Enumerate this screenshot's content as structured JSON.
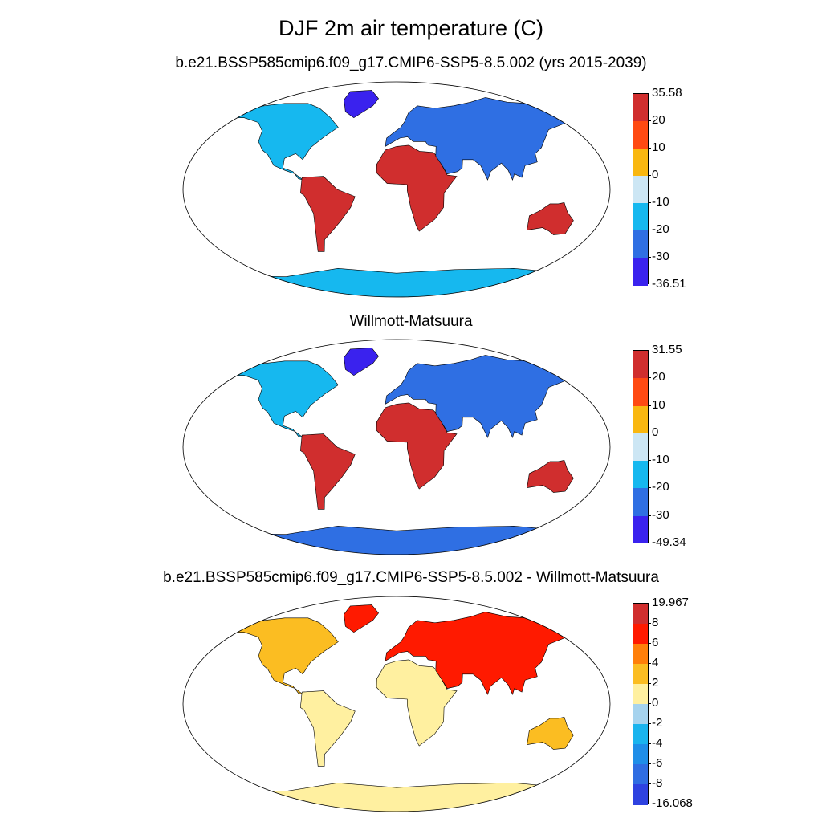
{
  "title": "DJF 2m air temperature (C)",
  "panels": [
    {
      "id": "model",
      "subtitle": "b.e21.BSSP585cmip6.f09_g17.CMIP6-SSP5-8.5.002 (yrs 2015-2039)",
      "colorbar": {
        "labels": [
          "35.58",
          "20",
          "10",
          "0",
          "-10",
          "-20",
          "-30",
          "-36.51"
        ],
        "colors": [
          "#d02e2e",
          "#ff4a12",
          "#f9b710",
          "#cce6f4",
          "#16b8ef",
          "#2f6fe3",
          "#3a22ee"
        ]
      }
    },
    {
      "id": "obs",
      "subtitle": "Willmott-Matsuura",
      "colorbar": {
        "labels": [
          "31.55",
          "20",
          "10",
          "0",
          "-10",
          "-20",
          "-30",
          "-49.34"
        ],
        "colors": [
          "#d02e2e",
          "#ff4a12",
          "#f9b710",
          "#cce6f4",
          "#16b8ef",
          "#2f6fe3",
          "#3a22ee"
        ]
      }
    },
    {
      "id": "diff",
      "subtitle": "b.e21.BSSP585cmip6.f09_g17.CMIP6-SSP5-8.5.002 - Willmott-Matsuura",
      "colorbar": {
        "labels": [
          "19.967",
          "8",
          "6",
          "4",
          "2",
          "0",
          "-2",
          "-4",
          "-6",
          "-8",
          "-16.068"
        ],
        "colors": [
          "#d02e2e",
          "#ff1a00",
          "#ff7f0a",
          "#fbbd22",
          "#fff0a0",
          "#a6d3ee",
          "#1ab4ee",
          "#1f8ee8",
          "#2f6de2",
          "#2e42e0"
        ]
      }
    }
  ]
}
